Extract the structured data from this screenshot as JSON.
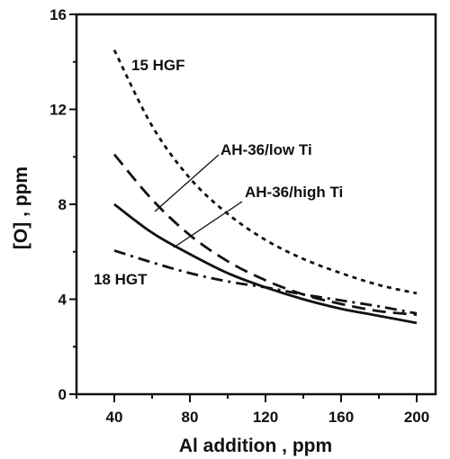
{
  "chart_data": {
    "type": "line",
    "title": "",
    "xlabel": "Al addition , ppm",
    "ylabel": "[O] , ppm",
    "xlim": [
      20,
      210
    ],
    "ylim": [
      0,
      16
    ],
    "xticks": [
      40,
      80,
      120,
      160,
      200
    ],
    "yticks": [
      0,
      4,
      8,
      12,
      16
    ],
    "x": [
      40,
      60,
      80,
      100,
      120,
      140,
      160,
      180,
      200
    ],
    "series": [
      {
        "name": "15 HGF",
        "style": "dotted",
        "values": [
          14.5,
          11.3,
          9.1,
          7.6,
          6.5,
          5.7,
          5.1,
          4.6,
          4.25
        ]
      },
      {
        "name": "AH-36/low Ti",
        "style": "dashed",
        "values": [
          10.1,
          8.2,
          6.7,
          5.6,
          4.8,
          4.2,
          3.8,
          3.5,
          3.35
        ]
      },
      {
        "name": "AH-36/high Ti",
        "style": "solid",
        "values": [
          8.0,
          6.8,
          5.9,
          5.1,
          4.5,
          4.0,
          3.6,
          3.3,
          3.0
        ]
      },
      {
        "name": "18 HGT",
        "style": "dash-dot",
        "values": [
          6.05,
          5.55,
          5.1,
          4.75,
          4.5,
          4.2,
          3.95,
          3.7,
          3.4
        ]
      }
    ],
    "annotations": [
      {
        "text": "15 HGF"
      },
      {
        "text": "AH-36/low Ti"
      },
      {
        "text": "AH-36/high Ti"
      },
      {
        "text": "18 HGT"
      }
    ],
    "grid": false,
    "legend": "inline labels"
  }
}
